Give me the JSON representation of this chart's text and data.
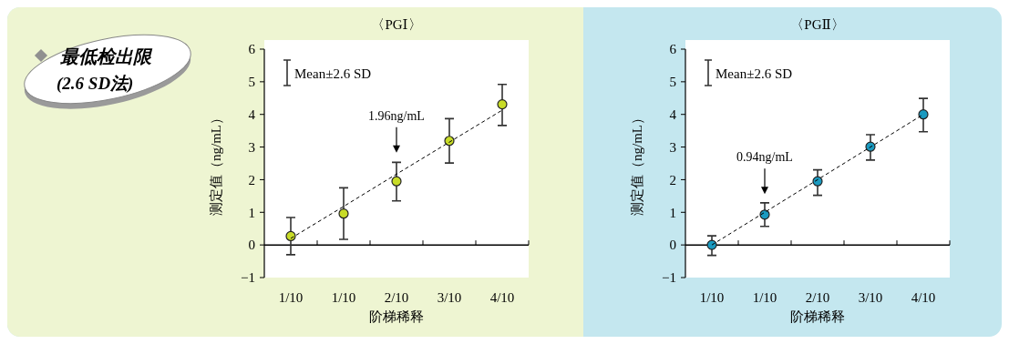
{
  "chart_data": [
    {
      "type": "other",
      "annotations": [
        "最低检出限",
        "(2.6 SD法)"
      ]
    },
    {
      "type": "scatter",
      "title": "〈PGⅠ〉",
      "xlabel": "阶梯稀释",
      "ylabel": "测定值（ng/mL）",
      "categories": [
        "1/10",
        "1/10",
        "2/10",
        "3/10",
        "4/10"
      ],
      "ylim": [
        -1,
        6
      ],
      "yticks": [
        {
          "value": -1,
          "label": "−1"
        },
        0,
        1,
        2,
        3,
        4,
        5,
        6
      ],
      "annotations": [
        "Mean±2.6 SD",
        "1.96ng/mL"
      ],
      "series": [
        {
          "type": "scatter",
          "marker": "circle",
          "color": "#c8dc28",
          "values": [
            0.27,
            0.96,
            1.95,
            3.19,
            4.31
          ],
          "errors": [
            [
              -0.3,
              0.84
            ],
            [
              0.17,
              1.75
            ],
            [
              1.35,
              2.53
            ],
            [
              2.51,
              3.87
            ],
            [
              3.66,
              4.92
            ]
          ]
        },
        {
          "type": "line",
          "marker": "none",
          "color": "#000000",
          "line_style": "dashed",
          "values": [
            0.2,
            1.18,
            2.17,
            3.15,
            4.13
          ]
        }
      ]
    },
    {
      "type": "scatter",
      "title": "〈PGⅡ〉",
      "xlabel": "阶梯稀释",
      "ylabel": "测定值（ng/mL）",
      "categories": [
        "1/10",
        "1/10",
        "2/10",
        "3/10",
        "4/10"
      ],
      "ylim": [
        -1,
        6
      ],
      "yticks": [
        {
          "value": -1,
          "label": "−1"
        },
        0,
        1,
        2,
        3,
        4,
        5,
        6
      ],
      "annotations": [
        "Mean±2.6 SD",
        "0.94ng/mL"
      ],
      "series": [
        {
          "type": "scatter",
          "marker": "circle",
          "color": "#1a9ac0",
          "values": [
            0,
            0.93,
            1.95,
            3.01,
            4.0
          ],
          "errors": [
            [
              -0.32,
              0.28
            ],
            [
              0.57,
              1.29
            ],
            [
              1.52,
              2.3
            ],
            [
              2.6,
              3.38
            ],
            [
              3.47,
              4.49
            ]
          ]
        },
        {
          "type": "line",
          "marker": "none",
          "color": "#000000",
          "line_style": "dashed",
          "values": [
            0,
            1,
            2,
            3,
            4
          ]
        }
      ]
    }
  ]
}
